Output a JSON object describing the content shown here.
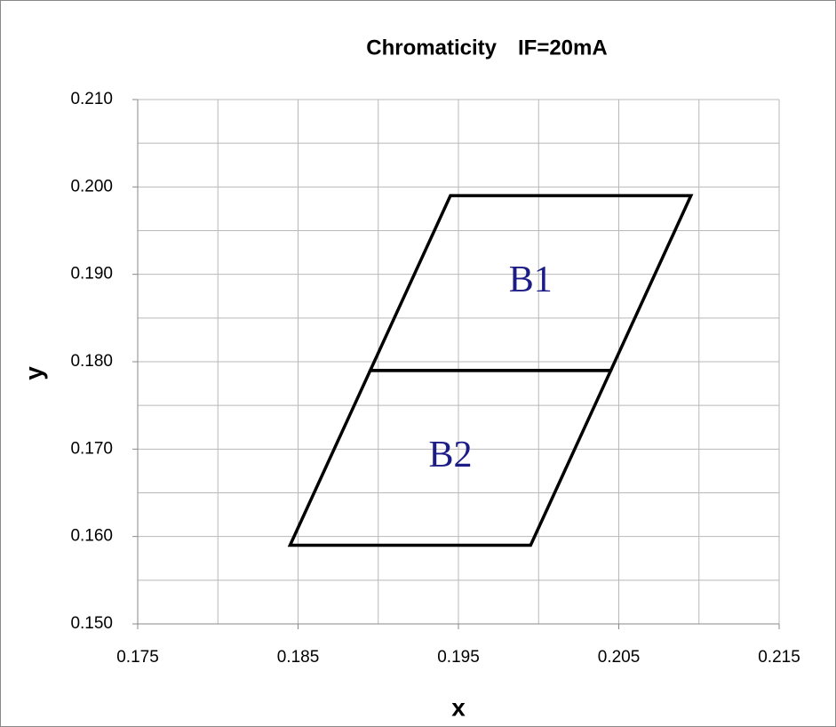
{
  "chart_data": {
    "type": "polygon",
    "title": "Chromaticity　IF=20mA",
    "xlabel": "x",
    "ylabel": "y",
    "xlim": [
      0.175,
      0.215
    ],
    "ylim": [
      0.15,
      0.21
    ],
    "xticks": [
      0.175,
      0.185,
      0.195,
      0.205,
      0.215
    ],
    "yticks": [
      {
        "value": 0.15,
        "label": "0.150"
      },
      {
        "value": 0.16,
        "label": "0.160"
      },
      {
        "value": 0.17,
        "label": "0.170"
      },
      {
        "value": 0.18,
        "label": "0.180"
      },
      {
        "value": 0.19,
        "label": "0.190"
      },
      {
        "value": 0.2,
        "label": "0.200"
      },
      {
        "value": 0.21,
        "label": "0.210"
      }
    ],
    "xgrid_minor": [
      0.18,
      0.19,
      0.2,
      0.21
    ],
    "ygrid_minor": [
      0.155,
      0.165,
      0.175,
      0.185,
      0.195,
      0.205
    ],
    "grid": true,
    "series": [
      {
        "name": "B1",
        "color": "#000000",
        "x": [
          0.1895,
          0.1945,
          0.2095,
          0.2045
        ],
        "values": [
          0.179,
          0.199,
          0.199,
          0.179
        ]
      },
      {
        "name": "B2",
        "color": "#000000",
        "x": [
          0.1845,
          0.1895,
          0.2045,
          0.1995
        ],
        "values": [
          0.159,
          0.179,
          0.179,
          0.159
        ]
      }
    ]
  }
}
